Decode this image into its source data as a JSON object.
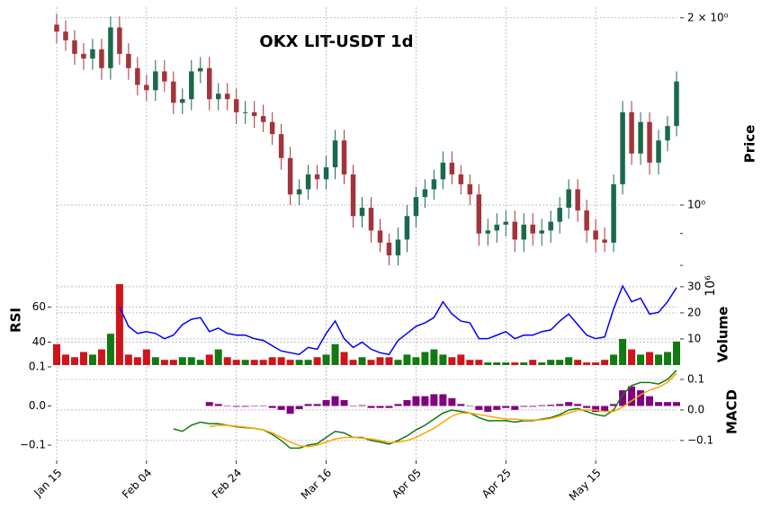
{
  "chart_data": {
    "type": "candlestick",
    "title": "OKX LIT-USDT 1d",
    "categories": [
      "Jan 15",
      null,
      null,
      null,
      null,
      null,
      null,
      null,
      null,
      null,
      "Feb 04",
      null,
      null,
      null,
      null,
      null,
      null,
      null,
      null,
      null,
      "Feb 24",
      null,
      null,
      null,
      null,
      null,
      null,
      null,
      null,
      null,
      "Mar 16",
      null,
      null,
      null,
      null,
      null,
      null,
      null,
      null,
      null,
      "Apr 05",
      null,
      null,
      null,
      null,
      null,
      null,
      null,
      null,
      null,
      "Apr 25",
      null,
      null,
      null,
      null,
      null,
      null,
      null,
      null,
      null,
      "May 15",
      null,
      null,
      null,
      null,
      null,
      null,
      null,
      null,
      null
    ],
    "open": [
      1.95,
      1.9,
      1.84,
      1.75,
      1.72,
      1.78,
      1.66,
      1.93,
      1.75,
      1.66,
      1.56,
      1.53,
      1.64,
      1.58,
      1.46,
      1.48,
      1.64,
      1.66,
      1.48,
      1.51,
      1.48,
      1.41,
      1.41,
      1.39,
      1.36,
      1.3,
      1.19,
      1.04,
      1.06,
      1.12,
      1.1,
      1.15,
      1.27,
      1.12,
      0.96,
      0.99,
      0.91,
      0.87,
      0.83,
      0.88,
      0.96,
      1.03,
      1.06,
      1.1,
      1.17,
      1.12,
      1.08,
      1.04,
      0.9,
      0.91,
      0.93,
      0.94,
      0.88,
      0.93,
      0.9,
      0.91,
      0.94,
      0.99,
      1.06,
      0.98,
      0.91,
      0.88,
      0.87,
      1.08,
      1.41,
      1.21,
      1.36,
      1.17,
      1.27,
      1.34
    ],
    "high": [
      2.03,
      1.98,
      1.91,
      1.82,
      1.85,
      1.85,
      2.01,
      2.01,
      1.82,
      1.73,
      1.62,
      1.71,
      1.71,
      1.64,
      1.54,
      1.71,
      1.73,
      1.73,
      1.57,
      1.57,
      1.54,
      1.47,
      1.47,
      1.45,
      1.41,
      1.35,
      1.24,
      1.1,
      1.16,
      1.16,
      1.2,
      1.32,
      1.32,
      1.16,
      1.03,
      1.03,
      0.95,
      0.9,
      0.92,
      1.0,
      1.07,
      1.1,
      1.14,
      1.22,
      1.22,
      1.16,
      1.12,
      1.08,
      0.95,
      0.97,
      0.98,
      0.98,
      0.97,
      0.97,
      0.95,
      0.98,
      1.03,
      1.1,
      1.1,
      1.02,
      0.95,
      0.92,
      1.12,
      1.47,
      1.47,
      1.41,
      1.41,
      1.32,
      1.39,
      1.64
    ],
    "low": [
      1.82,
      1.77,
      1.68,
      1.65,
      1.65,
      1.59,
      1.59,
      1.68,
      1.59,
      1.5,
      1.47,
      1.47,
      1.52,
      1.4,
      1.4,
      1.42,
      1.57,
      1.42,
      1.42,
      1.42,
      1.35,
      1.35,
      1.33,
      1.31,
      1.25,
      1.14,
      1.0,
      1.0,
      1.02,
      1.06,
      1.06,
      1.1,
      1.08,
      0.92,
      0.92,
      0.87,
      0.84,
      0.8,
      0.8,
      0.84,
      0.92,
      0.99,
      1.02,
      1.06,
      1.08,
      1.04,
      1.0,
      0.86,
      0.86,
      0.87,
      0.89,
      0.84,
      0.84,
      0.86,
      0.86,
      0.87,
      0.9,
      0.95,
      0.94,
      0.87,
      0.84,
      0.84,
      0.84,
      1.04,
      1.16,
      1.16,
      1.12,
      1.12,
      1.22,
      1.29
    ],
    "close": [
      1.9,
      1.84,
      1.75,
      1.72,
      1.78,
      1.66,
      1.93,
      1.75,
      1.66,
      1.56,
      1.53,
      1.64,
      1.58,
      1.46,
      1.48,
      1.64,
      1.66,
      1.48,
      1.51,
      1.48,
      1.41,
      1.41,
      1.39,
      1.36,
      1.3,
      1.19,
      1.04,
      1.06,
      1.12,
      1.1,
      1.15,
      1.27,
      1.12,
      0.96,
      0.99,
      0.91,
      0.87,
      0.83,
      0.88,
      0.96,
      1.03,
      1.06,
      1.1,
      1.17,
      1.12,
      1.08,
      1.04,
      0.9,
      0.91,
      0.93,
      0.94,
      0.88,
      0.93,
      0.9,
      0.91,
      0.94,
      0.99,
      1.06,
      0.98,
      0.91,
      0.88,
      0.87,
      1.08,
      1.41,
      1.21,
      1.36,
      1.17,
      1.27,
      1.34,
      1.58
    ],
    "up_color": "#1a6a4a",
    "down_color": "#a3343c",
    "ylabel": "Price",
    "log_scale": true,
    "ylim": [
      0.774,
      2.08
    ],
    "yticks": [
      {
        "value": 1,
        "label": "10⁰"
      },
      {
        "value": 2,
        "label": "2 × 10⁰"
      }
    ],
    "yminorticks": [
      0.8,
      0.9
    ],
    "grid": true,
    "volume": {
      "label": "Volume",
      "offset_label": "10⁶",
      "values": [
        8,
        4,
        3,
        5,
        4,
        6,
        12,
        31,
        4,
        3,
        6,
        3,
        2,
        2,
        3,
        3,
        2,
        4,
        6,
        3,
        2,
        2,
        2,
        2,
        3,
        3,
        2,
        2,
        2,
        3,
        4,
        8,
        5,
        2,
        3,
        2,
        3,
        3,
        2,
        4,
        3,
        5,
        6,
        4,
        3,
        4,
        2,
        2,
        1,
        1,
        1,
        1,
        1,
        2,
        1,
        2,
        2,
        3,
        2,
        1,
        1,
        2,
        4,
        10,
        6,
        4,
        5,
        4,
        5,
        9
      ],
      "ylim": [
        0,
        31
      ],
      "yticks": [
        10,
        20,
        30
      ],
      "up_color": "#117a11",
      "down_color": "#d0141a"
    },
    "rsi": {
      "label": "RSI",
      "color": "#0000ff",
      "values": [
        null,
        null,
        null,
        null,
        null,
        null,
        null,
        60,
        49,
        45,
        46,
        45,
        42,
        44,
        50,
        53,
        54,
        46,
        48,
        45,
        44,
        44,
        42,
        41,
        38,
        35,
        34,
        33,
        37,
        36,
        45,
        52,
        42,
        37,
        40,
        36,
        34,
        33,
        41,
        45,
        49,
        51,
        54,
        63,
        56,
        52,
        51,
        42,
        42,
        44,
        46,
        42,
        44,
        44,
        46,
        47,
        52,
        56,
        50,
        44,
        42,
        43,
        59,
        72,
        63,
        65,
        56,
        57,
        63,
        71
      ],
      "ylim": [
        27,
        73
      ],
      "yticks": [
        40,
        60
      ]
    },
    "macd": {
      "label": "MACD",
      "ylim": [
        -0.165,
        0.153
      ],
      "yticks": [
        {
          "value": -0.1,
          "label": "−0.1"
        },
        {
          "value": 0,
          "label": "0.0"
        },
        0.1
      ],
      "y2lim": [
        -0.139,
        0.1092
      ],
      "y2ticks": [
        {
          "value": -0.1,
          "label": "−0.1"
        },
        {
          "value": 0,
          "label": "0.0"
        },
        0.1
      ],
      "macd_color": "#117a11",
      "signal_color": "#ffa500",
      "hist_color": "#800080",
      "macd_values": [
        null,
        null,
        null,
        null,
        null,
        null,
        null,
        null,
        null,
        null,
        null,
        null,
        null,
        -0.062,
        -0.07,
        -0.05,
        -0.04,
        -0.045,
        -0.045,
        -0.05,
        -0.055,
        -0.058,
        -0.06,
        -0.065,
        -0.08,
        -0.1,
        -0.125,
        -0.125,
        -0.115,
        -0.11,
        -0.09,
        -0.07,
        -0.075,
        -0.09,
        -0.09,
        -0.1,
        -0.105,
        -0.112,
        -0.1,
        -0.085,
        -0.065,
        -0.05,
        -0.03,
        -0.01,
        0.0,
        -0.005,
        -0.01,
        -0.025,
        -0.035,
        -0.035,
        -0.035,
        -0.04,
        -0.035,
        -0.035,
        -0.03,
        -0.025,
        -0.015,
        0.0,
        0.005,
        -0.005,
        -0.015,
        -0.02,
        0.0,
        0.05,
        0.08,
        0.09,
        0.09,
        0.085,
        0.1,
        0.13
      ],
      "signal_values": [
        null,
        null,
        null,
        null,
        null,
        null,
        null,
        null,
        null,
        null,
        null,
        null,
        null,
        null,
        null,
        null,
        null,
        -0.055,
        -0.05,
        -0.05,
        -0.053,
        -0.056,
        -0.06,
        -0.065,
        -0.075,
        -0.09,
        -0.105,
        -0.117,
        -0.12,
        -0.115,
        -0.105,
        -0.095,
        -0.09,
        -0.09,
        -0.092,
        -0.095,
        -0.1,
        -0.107,
        -0.105,
        -0.1,
        -0.09,
        -0.075,
        -0.06,
        -0.04,
        -0.02,
        -0.01,
        -0.01,
        -0.015,
        -0.02,
        -0.025,
        -0.03,
        -0.03,
        -0.033,
        -0.033,
        -0.032,
        -0.028,
        -0.02,
        -0.01,
        0.0,
        0.0,
        0.0,
        -0.005,
        -0.005,
        0.01,
        0.03,
        0.05,
        0.065,
        0.075,
        0.09,
        0.12
      ],
      "hist_values": [
        null,
        null,
        null,
        null,
        null,
        null,
        null,
        null,
        null,
        null,
        null,
        null,
        null,
        null,
        null,
        null,
        null,
        0.01,
        0.005,
        0,
        -0.002,
        -0.002,
        0,
        0,
        -0.005,
        -0.01,
        -0.02,
        -0.008,
        0.005,
        0.005,
        0.015,
        0.025,
        0.015,
        0,
        0.002,
        -0.005,
        -0.005,
        -0.005,
        0.005,
        0.015,
        0.025,
        0.025,
        0.03,
        0.03,
        0.02,
        0.005,
        0,
        -0.01,
        -0.015,
        -0.01,
        -0.005,
        -0.01,
        -0.002,
        -0.002,
        0.002,
        0.003,
        0.005,
        0.01,
        0.005,
        -0.005,
        -0.015,
        -0.015,
        0.005,
        0.04,
        0.05,
        0.04,
        0.025,
        0.01,
        0.01,
        0.01
      ]
    }
  }
}
